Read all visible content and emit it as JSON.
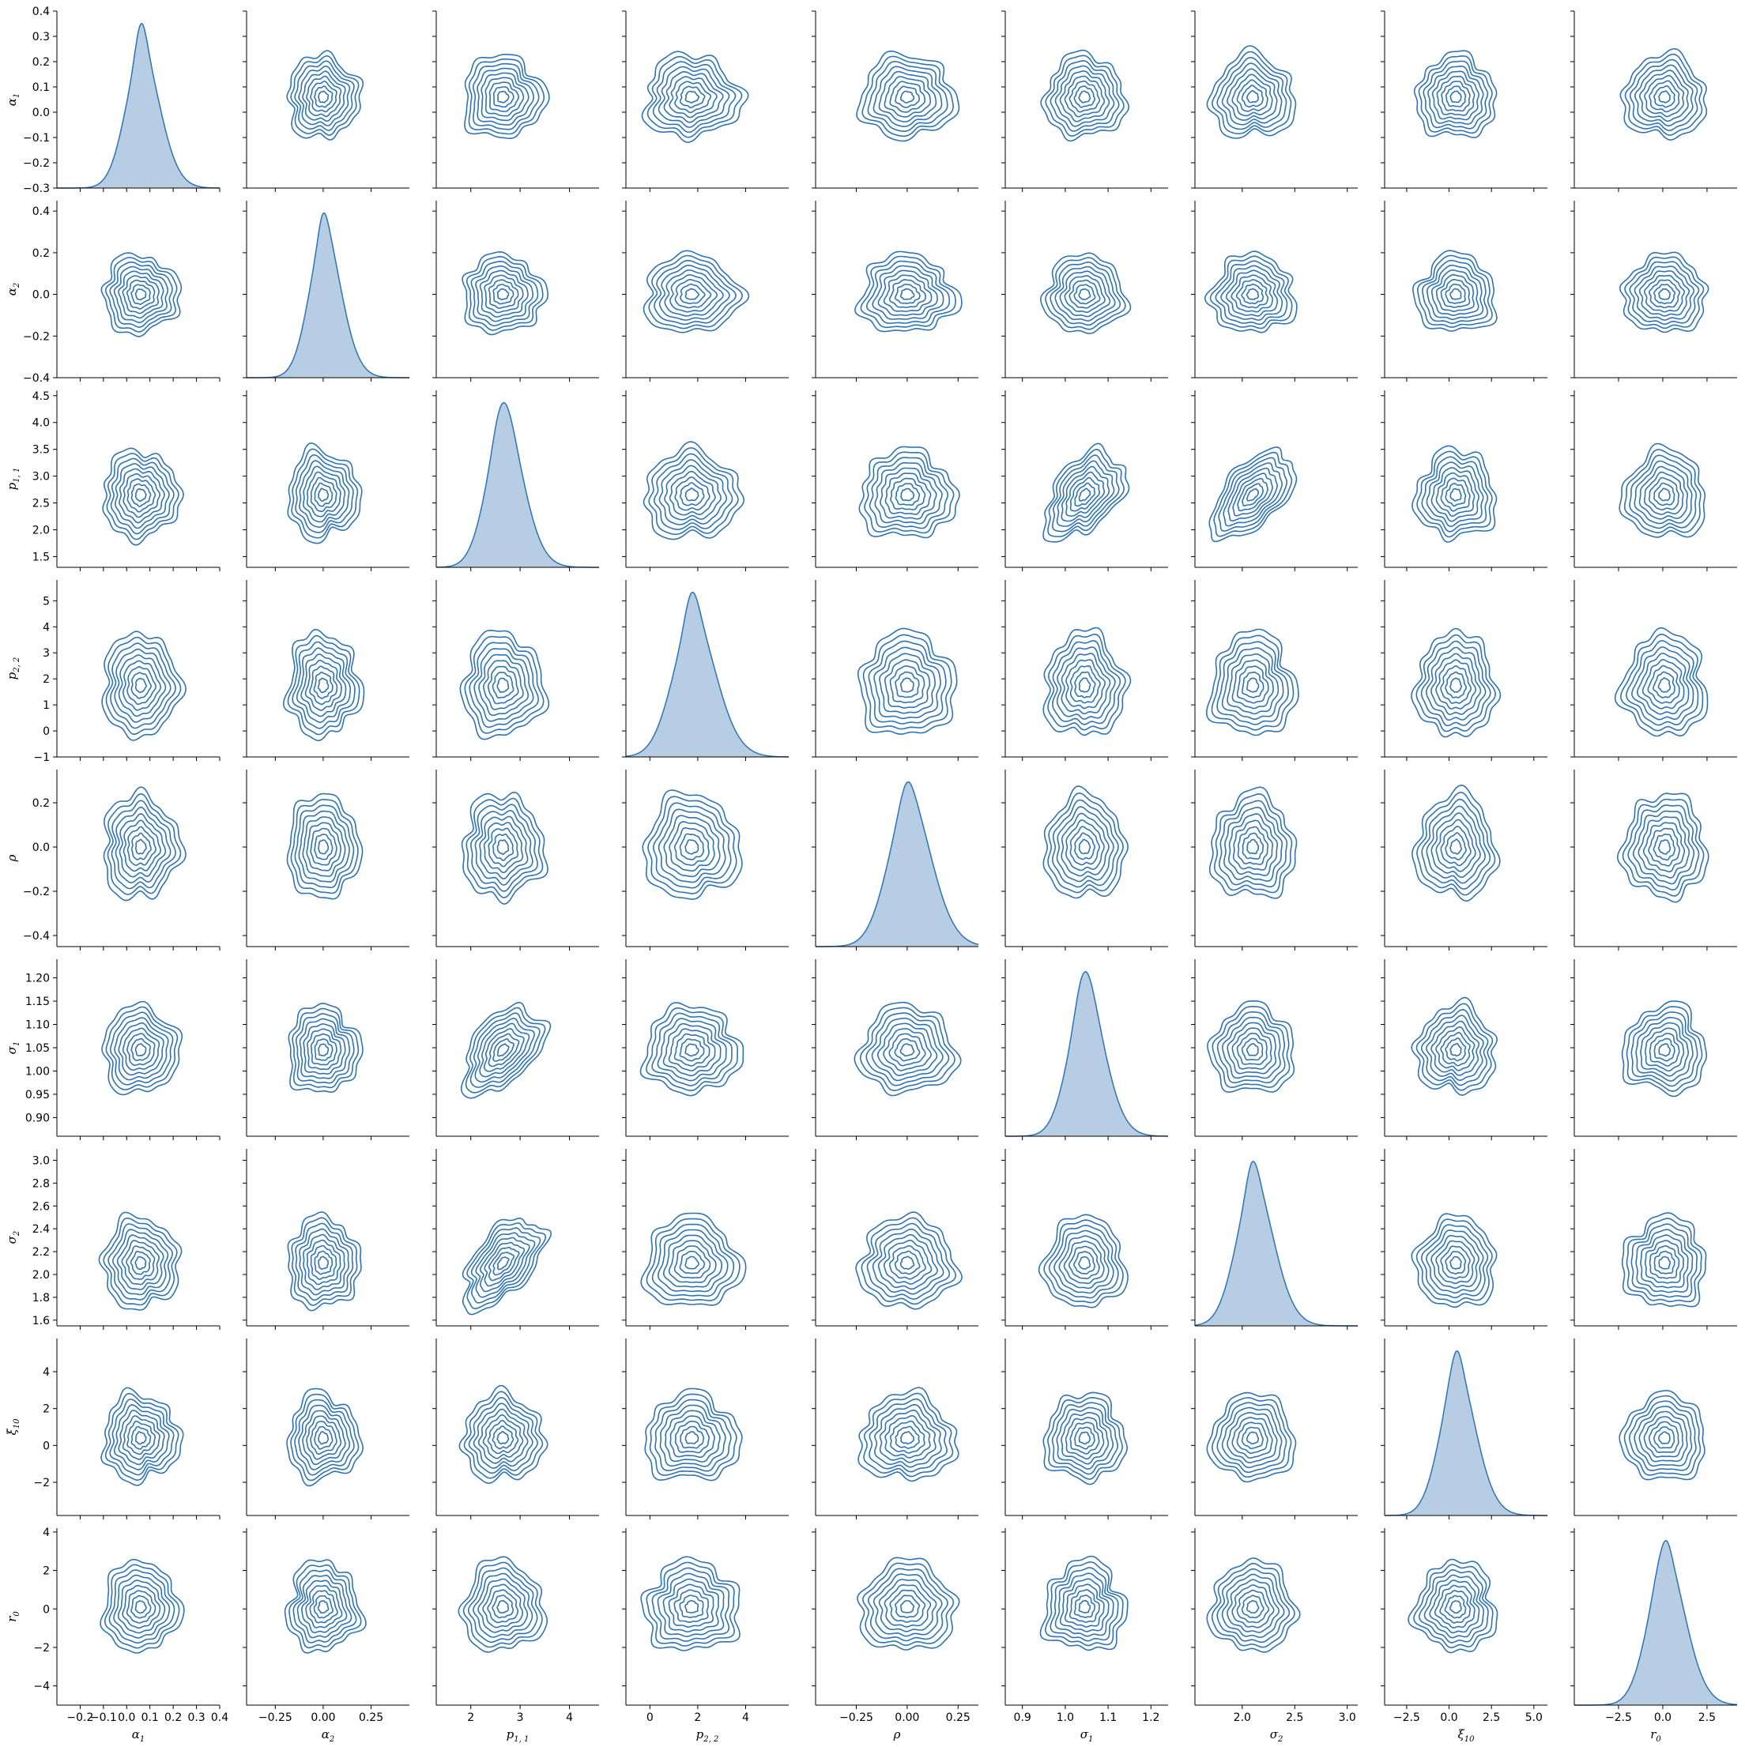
{
  "chart_data": {
    "type": "pairplot-kde",
    "description_grid": "9x9",
    "colors": {
      "line": "#2f73b2",
      "fill": "#b7cde4"
    },
    "variables": [
      {
        "label_base": "α",
        "label_sub": "1",
        "center": 0.06,
        "spread": 0.07,
        "ticks": [
          -0.2,
          -0.1,
          0.0,
          0.1,
          0.2,
          0.3,
          0.4
        ],
        "tick_labels": [
          "−0.2",
          "−0.1",
          "0.0",
          "0.1",
          "0.2",
          "0.3",
          "0.4"
        ],
        "range": [
          -0.3,
          0.4
        ],
        "y_ticks": [
          -0.3,
          -0.2,
          -0.1,
          0.0,
          0.1,
          0.2,
          0.3,
          0.4
        ],
        "y_tick_labels": [
          "−0.3",
          "−0.2",
          "−0.1",
          "0.0",
          "0.1",
          "0.2",
          "0.3",
          "0.4"
        ]
      },
      {
        "label_base": "α",
        "label_sub": "2",
        "center": 0.0,
        "spread": 0.08,
        "ticks": [
          -0.25,
          0.0,
          0.25
        ],
        "tick_labels": [
          "−0.25",
          "0.00",
          "0.25"
        ],
        "range": [
          -0.4,
          0.45
        ],
        "y_ticks": [
          -0.4,
          -0.2,
          0.0,
          0.2,
          0.4
        ],
        "y_tick_labels": [
          "−0.4",
          "−0.2",
          "0.0",
          "0.2",
          "0.4"
        ]
      },
      {
        "label_base": "p",
        "label_sub": "1, 1",
        "center": 2.65,
        "spread": 0.35,
        "ticks": [
          2,
          3,
          4
        ],
        "tick_labels": [
          "2",
          "3",
          "4"
        ],
        "range": [
          1.3,
          4.6
        ],
        "y_ticks": [
          1.5,
          2.0,
          2.5,
          3.0,
          3.5,
          4.0,
          4.5
        ],
        "y_tick_labels": [
          "1.5",
          "2.0",
          "2.5",
          "3.0",
          "3.5",
          "4.0",
          "4.5"
        ]
      },
      {
        "label_base": "p",
        "label_sub": "2, 2",
        "center": 1.75,
        "spread": 0.85,
        "ticks": [
          0,
          2,
          4
        ],
        "tick_labels": [
          "0",
          "2",
          "4"
        ],
        "range": [
          -1.0,
          5.8
        ],
        "y_ticks": [
          -1,
          0,
          1,
          2,
          3,
          4,
          5
        ],
        "y_tick_labels": [
          "−1",
          "0",
          "1",
          "2",
          "3",
          "4",
          "5"
        ]
      },
      {
        "label_base": "ρ",
        "label_sub": "",
        "center": 0.0,
        "spread": 0.1,
        "ticks": [
          -0.25,
          0.0,
          0.25
        ],
        "tick_labels": [
          "−0.25",
          "0.00",
          "0.25"
        ],
        "range": [
          -0.45,
          0.35
        ],
        "y_ticks": [
          -0.4,
          -0.2,
          0.0,
          0.2
        ],
        "y_tick_labels": [
          "−0.4",
          "−0.2",
          "0.0",
          "0.2"
        ]
      },
      {
        "label_base": "σ",
        "label_sub": "1",
        "center": 1.045,
        "spread": 0.04,
        "ticks": [
          0.9,
          1.0,
          1.1,
          1.2
        ],
        "tick_labels": [
          "0.9",
          "1.0",
          "1.1",
          "1.2"
        ],
        "range": [
          0.86,
          1.24
        ],
        "y_ticks": [
          0.9,
          0.95,
          1.0,
          1.05,
          1.1,
          1.15,
          1.2
        ],
        "y_tick_labels": [
          "0.90",
          "0.95",
          "1.00",
          "1.05",
          "1.10",
          "1.15",
          "1.20"
        ]
      },
      {
        "label_base": "σ",
        "label_sub": "2",
        "center": 2.1,
        "spread": 0.17,
        "ticks": [
          2.0,
          2.5,
          3.0
        ],
        "tick_labels": [
          "2.0",
          "2.5",
          "3.0"
        ],
        "range": [
          1.55,
          3.1
        ],
        "y_ticks": [
          1.6,
          1.8,
          2.0,
          2.2,
          2.4,
          2.6,
          2.8,
          3.0
        ],
        "y_tick_labels": [
          "1.6",
          "1.8",
          "2.0",
          "2.2",
          "2.4",
          "2.6",
          "2.8",
          "3.0"
        ]
      },
      {
        "label_base": "ξ",
        "label_sub": "10",
        "center": 0.4,
        "spread": 1.0,
        "ticks": [
          -2.5,
          0.0,
          2.5,
          5.0
        ],
        "tick_labels": [
          "−2.5",
          "0.0",
          "2.5",
          "5.0"
        ],
        "range": [
          -3.8,
          5.8
        ],
        "y_ticks": [
          -2,
          0,
          2,
          4
        ],
        "y_tick_labels": [
          "−2",
          "0",
          "2",
          "4"
        ]
      },
      {
        "label_base": "r",
        "label_sub": "0",
        "center": 0.1,
        "spread": 1.0,
        "ticks": [
          -2.5,
          0.0,
          2.5
        ],
        "tick_labels": [
          "−2.5",
          "0.0",
          "2.5"
        ],
        "range": [
          -5.0,
          4.2
        ],
        "y_ticks": [
          -4,
          -2,
          0,
          2,
          4
        ],
        "y_tick_labels": [
          "−4",
          "−2",
          "0",
          "2",
          "4"
        ]
      }
    ],
    "correlations": [
      {
        "i": 2,
        "j": 5,
        "r": 0.45
      },
      {
        "i": 2,
        "j": 6,
        "r": 0.55
      }
    ]
  }
}
